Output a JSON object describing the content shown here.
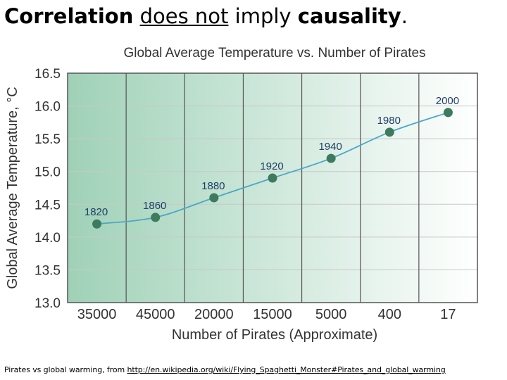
{
  "slide": {
    "title_parts": [
      "Correlation",
      " ",
      "does not",
      " imply ",
      "causality",
      "."
    ],
    "caption_prefix": "Pirates vs global warming, from ",
    "caption_link": "http://en.wikipedia.org/wiki/Flying_Spaghetti_Monster#Pirates_and_global_warming"
  },
  "chart_data": {
    "type": "line",
    "title": "Global Average Temperature vs. Number of Pirates",
    "xlabel": "Number of Pirates (Approximate)",
    "ylabel": "Global Average Temperature, °C",
    "categories": [
      "35000",
      "45000",
      "20000",
      "15000",
      "5000",
      "400",
      "17"
    ],
    "series": [
      {
        "values": [
          14.2,
          14.3,
          14.6,
          14.9,
          15.2,
          15.6,
          15.9
        ],
        "point_labels": [
          "1820",
          "1860",
          "1880",
          "1920",
          "1940",
          "1980",
          "2000"
        ]
      }
    ],
    "ylim": [
      13.0,
      16.5
    ],
    "yticks": [
      "13.0",
      "13.5",
      "14.0",
      "14.5",
      "15.0",
      "15.5",
      "16.0",
      "16.5"
    ],
    "grid": true,
    "colors": {
      "line": "#4aa8c4",
      "marker": "#3d7a5e",
      "label": "#1f3e66",
      "background_left": "#9fd1b7",
      "background_right": "#ffffff"
    }
  }
}
